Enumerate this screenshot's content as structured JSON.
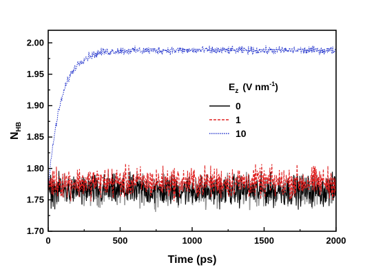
{
  "chart_data": {
    "type": "line",
    "xlabel": "Time (ps)",
    "ylabel_main": "N",
    "ylabel_sub": "HB",
    "xlim": [
      0,
      2000
    ],
    "ylim": [
      1.7,
      2.02
    ],
    "xticks": [
      0,
      500,
      1000,
      1500,
      2000
    ],
    "xtick_labels": [
      "0",
      "500",
      "1000",
      "1500",
      "2000"
    ],
    "yticks": [
      1.7,
      1.75,
      1.8,
      1.85,
      1.9,
      1.95,
      2.0
    ],
    "ytick_labels": [
      "1.70",
      "1.75",
      "1.80",
      "1.85",
      "1.90",
      "1.95",
      "2.00"
    ],
    "grid": false,
    "legend": {
      "title_main": "E",
      "title_sub": "z",
      "title_units": "(V nm",
      "title_exp": "-1",
      "title_close": ")",
      "placement": "center-right"
    },
    "series": [
      {
        "name": "0",
        "color": "#000000",
        "style": "solid",
        "model": "noisy-constant",
        "mean": 1.765,
        "noise": 0.012
      },
      {
        "name": "1",
        "color": "#e02020",
        "style": "dashed",
        "model": "noisy-constant",
        "mean": 1.778,
        "noise": 0.012
      },
      {
        "name": "10",
        "color": "#2233cc",
        "style": "dotted",
        "model": "noisy-relaxation",
        "start": 1.77,
        "plateau": 1.988,
        "tau_ps": 90,
        "noise": 0.003
      }
    ],
    "overlay_series_color": "#999999"
  }
}
